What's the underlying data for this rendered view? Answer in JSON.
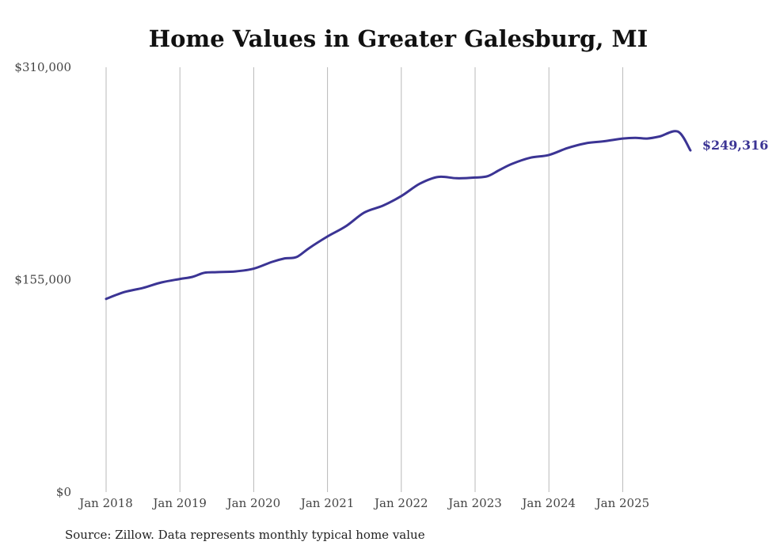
{
  "chart_data": {
    "type": "line",
    "title": "Home Values in Greater Galesburg, MI",
    "xlabel": "",
    "ylabel": "",
    "ylim": [
      0,
      310000
    ],
    "yticks": [
      {
        "value": 0,
        "label": "$0"
      },
      {
        "value": 155000,
        "label": "$155,000"
      },
      {
        "value": 310000,
        "label": "$310,000"
      }
    ],
    "xticks": [
      {
        "value": 2018,
        "label": "Jan 2018"
      },
      {
        "value": 2019,
        "label": "Jan 2019"
      },
      {
        "value": 2020,
        "label": "Jan 2020"
      },
      {
        "value": 2021,
        "label": "Jan 2021"
      },
      {
        "value": 2022,
        "label": "Jan 2022"
      },
      {
        "value": 2023,
        "label": "Jan 2023"
      },
      {
        "value": 2024,
        "label": "Jan 2024"
      },
      {
        "value": 2025,
        "label": "Jan 2025"
      }
    ],
    "xlim": [
      2018,
      2025.917
    ],
    "grid": "vertical",
    "series": [
      {
        "name": "Home value",
        "color": "#3b3494",
        "x": [
          2018,
          2018.25,
          2018.5,
          2018.75,
          2019,
          2019.17,
          2019.33,
          2019.5,
          2019.75,
          2020,
          2020.25,
          2020.42,
          2020.58,
          2020.75,
          2021,
          2021.25,
          2021.5,
          2021.75,
          2022,
          2022.25,
          2022.5,
          2022.75,
          2023,
          2023.17,
          2023.33,
          2023.5,
          2023.75,
          2024,
          2024.25,
          2024.5,
          2024.75,
          2025,
          2025.17,
          2025.33,
          2025.5,
          2025.75,
          2025.917
        ],
        "values": [
          141000,
          146000,
          149000,
          153000,
          155500,
          157000,
          160000,
          160500,
          161000,
          163000,
          168000,
          170500,
          171500,
          178000,
          186500,
          194000,
          204000,
          209000,
          216000,
          225000,
          230000,
          229000,
          229500,
          230500,
          235000,
          239500,
          244000,
          246000,
          251000,
          254500,
          256000,
          258000,
          258500,
          258000,
          259500,
          263000,
          249316
        ]
      }
    ],
    "end_label": "$249,316"
  },
  "source_text": "Source: Zillow. Data represents monthly typical home value"
}
